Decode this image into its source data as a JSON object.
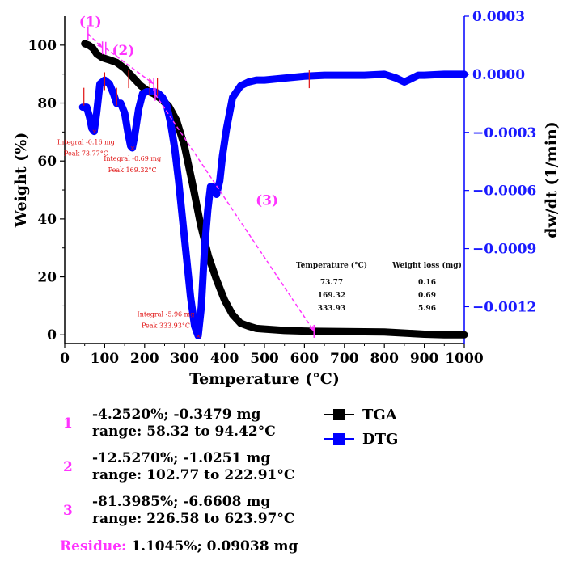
{
  "chart_data": {
    "type": "line",
    "xlabel": "Temperature (°C)",
    "ylabel_left": "Weight (%)",
    "ylabel_right": "dw/dt (1/min)",
    "xlim": [
      0,
      1000
    ],
    "ylim_left": [
      -3,
      110
    ],
    "ylim_right": [
      -0.00139,
      0.0003
    ],
    "x_ticks": [
      0,
      100,
      200,
      300,
      400,
      500,
      600,
      700,
      800,
      900,
      1000
    ],
    "y_left_ticks": [
      0,
      20,
      40,
      60,
      80,
      100
    ],
    "y_right_ticks": [
      0.0003,
      0.0,
      -0.0003,
      -0.0006,
      -0.0009,
      -0.0012
    ],
    "y_right_tick_labels": [
      "0.0003",
      "0.0000",
      "−0.0003",
      "−0.0006",
      "−0.0009",
      "−0.0012"
    ],
    "grid": false,
    "legend_placement": "below-right",
    "series": [
      {
        "name": "TGA",
        "axis": "left",
        "color": "#000000",
        "x": [
          50,
          60,
          70,
          80,
          94,
          110,
          130,
          150,
          170,
          190,
          210,
          223,
          240,
          260,
          280,
          300,
          320,
          340,
          360,
          380,
          400,
          420,
          440,
          460,
          480,
          500,
          550,
          600,
          624,
          700,
          800,
          850,
          900,
          950,
          1000
        ],
        "y": [
          100.5,
          100,
          99,
          97,
          95.7,
          95,
          94,
          92,
          89,
          86,
          84,
          83.2,
          81.5,
          79,
          74,
          65,
          52,
          38,
          27,
          19,
          12,
          7,
          4,
          3,
          2.2,
          2,
          1.5,
          1.3,
          1.2,
          1.1,
          1.0,
          0.6,
          0.2,
          0,
          0
        ]
      },
      {
        "name": "DTG",
        "axis": "right",
        "color": "#0000ff",
        "x": [
          45,
          55,
          62,
          68,
          73.77,
          80,
          88,
          100,
          112,
          122,
          130,
          140,
          150,
          158,
          165,
          169.32,
          175,
          185,
          195,
          205,
          215,
          225,
          235,
          245,
          255,
          265,
          275,
          285,
          295,
          305,
          315,
          325,
          333.93,
          342,
          350,
          358,
          365,
          372,
          380,
          388,
          395,
          405,
          420,
          440,
          460,
          480,
          500,
          550,
          600,
          650,
          700,
          750,
          800,
          830,
          850,
          870,
          885,
          900,
          950,
          1000
        ],
        "y": [
          -0.00017,
          -0.00017,
          -0.00022,
          -0.00028,
          -0.000295,
          -0.0002,
          -5e-05,
          -3e-05,
          -5e-05,
          -0.0001,
          -0.00015,
          -0.00015,
          -0.0002,
          -0.0003,
          -0.00037,
          -0.00038,
          -0.00032,
          -0.00018,
          -0.0001,
          -9e-05,
          -9e-05,
          -9e-05,
          -0.0001,
          -0.00012,
          -0.00016,
          -0.00025,
          -0.00038,
          -0.00055,
          -0.00075,
          -0.00095,
          -0.00115,
          -0.0013,
          -0.00135,
          -0.0012,
          -0.0009,
          -0.0007,
          -0.00058,
          -0.00058,
          -0.00062,
          -0.00055,
          -0.00042,
          -0.00028,
          -0.00012,
          -6e-05,
          -4e-05,
          -3e-05,
          -3e-05,
          -2e-05,
          -1e-05,
          -5e-06,
          -5e-06,
          -5e-06,
          0,
          -2e-05,
          -4e-05,
          -2e-05,
          -5e-06,
          -5e-06,
          0.0,
          0.0
        ]
      }
    ],
    "peak_annotations": [
      {
        "integral": "Integral -0.16 mg",
        "peak": "Peak 73.77°C",
        "x": 73.77,
        "y": -0.000295
      },
      {
        "integral": "Integral -0.69 mg",
        "peak": "Peak 169.32°C",
        "x": 169.32,
        "y": -0.00038
      },
      {
        "integral": "Integral -5.96 mg",
        "peak": "Peak 333.93°C",
        "x": 333.93,
        "y": -0.00135
      }
    ],
    "table": {
      "headers": [
        "Temperature (°C)",
        "Weight loss (mg)"
      ],
      "rows": [
        [
          "73.77",
          "0.16"
        ],
        [
          "169.32",
          "0.69"
        ],
        [
          "333.93",
          "5.96"
        ]
      ]
    },
    "steps": [
      {
        "label": "(1)",
        "x_start": 58.32,
        "x_end": 94.42,
        "y_start": 100,
        "y_end": 95.7
      },
      {
        "label": "(2)",
        "x_start": 102.77,
        "x_end": 222.91,
        "y_start": 95,
        "y_end": 83.2
      },
      {
        "label": "(3)",
        "x_start": 226.58,
        "x_end": 623.97,
        "y_start": 83,
        "y_end": 1.2
      }
    ]
  },
  "legend": [
    {
      "label": "TGA",
      "color": "#000000"
    },
    {
      "label": "DTG",
      "color": "#0000ff"
    }
  ],
  "step_details": [
    {
      "num": "1",
      "line1": "-4.2520%; -0.3479 mg",
      "line2": "range: 58.32 to 94.42°C"
    },
    {
      "num": "2",
      "line1": "-12.5270%; -1.0251 mg",
      "line2": "range: 102.77 to 222.91°C"
    },
    {
      "num": "3",
      "line1": "-81.3985%; -6.6608 mg",
      "line2": "range: 226.58 to 623.97°C"
    }
  ],
  "residue": {
    "label": "Residue:",
    "value": "1.1045%; 0.09038 mg"
  },
  "colors": {
    "annotation": "#ff33ff",
    "marker": "#e01010"
  }
}
